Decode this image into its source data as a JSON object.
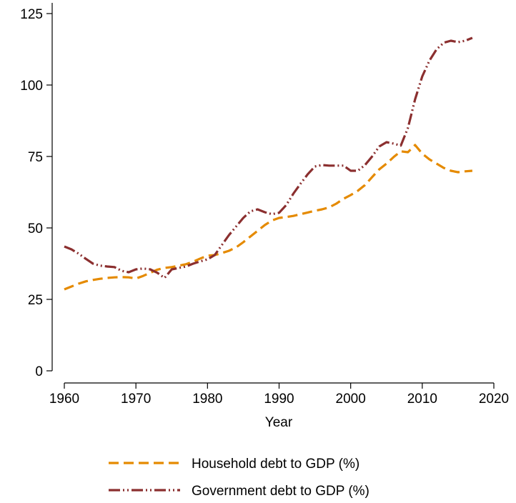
{
  "chart_data": {
    "type": "line",
    "title": "",
    "xlabel": "Year",
    "ylabel": "",
    "xlim": [
      1960,
      2020
    ],
    "ylim": [
      0,
      125
    ],
    "x_ticks": [
      1960,
      1970,
      1980,
      1990,
      2000,
      2010,
      2020
    ],
    "y_ticks": [
      0,
      25,
      50,
      75,
      100,
      125
    ],
    "grid": false,
    "legend_position": "bottom",
    "series": [
      {
        "name": "Household debt to GDP (%)",
        "color": "#E58A00",
        "dash": "dashed",
        "x": [
          1960,
          1961,
          1962,
          1963,
          1964,
          1965,
          1966,
          1967,
          1968,
          1969,
          1970,
          1971,
          1972,
          1973,
          1974,
          1975,
          1976,
          1977,
          1978,
          1979,
          1980,
          1981,
          1982,
          1983,
          1984,
          1985,
          1986,
          1987,
          1988,
          1989,
          1990,
          1991,
          1992,
          1993,
          1994,
          1995,
          1996,
          1997,
          1998,
          1999,
          2000,
          2001,
          2002,
          2003,
          2004,
          2005,
          2006,
          2007,
          2008,
          2009,
          2010,
          2011,
          2012,
          2013,
          2014,
          2015,
          2016,
          2017
        ],
        "y": [
          28.5,
          29.5,
          30.5,
          31.3,
          31.8,
          32.2,
          32.5,
          32.7,
          32.8,
          32.7,
          32.3,
          33.2,
          34.3,
          35.4,
          36.0,
          36.3,
          36.8,
          37.3,
          38.2,
          39.3,
          40.3,
          40.5,
          41.2,
          42.0,
          43.2,
          45.0,
          47.0,
          49.0,
          51.0,
          52.6,
          53.5,
          53.8,
          54.2,
          54.8,
          55.4,
          56.0,
          56.5,
          57.2,
          58.5,
          60.2,
          61.5,
          63.0,
          65.0,
          67.8,
          70.5,
          72.5,
          74.8,
          76.8,
          76.5,
          79.0,
          76.0,
          74.0,
          72.5,
          71.0,
          70.0,
          69.5,
          69.8,
          70.0
        ]
      },
      {
        "name": "Government debt to GDP (%)",
        "color": "#8B2F2F",
        "dash": "dash-dot",
        "x": [
          1960,
          1961,
          1962,
          1963,
          1964,
          1965,
          1966,
          1967,
          1968,
          1969,
          1970,
          1971,
          1972,
          1973,
          1974,
          1975,
          1976,
          1977,
          1978,
          1979,
          1980,
          1981,
          1982,
          1983,
          1984,
          1985,
          1986,
          1987,
          1988,
          1989,
          1990,
          1991,
          1992,
          1993,
          1994,
          1995,
          1996,
          1997,
          1998,
          1999,
          2000,
          2001,
          2002,
          2003,
          2004,
          2005,
          2006,
          2007,
          2008,
          2009,
          2010,
          2011,
          2012,
          2013,
          2014,
          2015,
          2016,
          2017
        ],
        "y": [
          43.5,
          42.5,
          41.0,
          39.2,
          37.5,
          36.8,
          36.5,
          36.3,
          35.0,
          34.5,
          35.5,
          35.8,
          35.5,
          34.3,
          32.5,
          35.5,
          36.0,
          36.5,
          37.5,
          38.3,
          39.0,
          40.5,
          44.0,
          47.5,
          50.5,
          53.5,
          55.8,
          56.5,
          55.5,
          54.8,
          55.3,
          58.0,
          62.0,
          65.5,
          68.8,
          71.5,
          72.0,
          71.8,
          71.8,
          71.8,
          70.0,
          70.0,
          72.0,
          75.0,
          78.5,
          80.0,
          79.5,
          78.8,
          85.0,
          95.0,
          103.0,
          108.5,
          112.5,
          114.8,
          115.5,
          115.0,
          115.5,
          116.5
        ]
      }
    ]
  }
}
